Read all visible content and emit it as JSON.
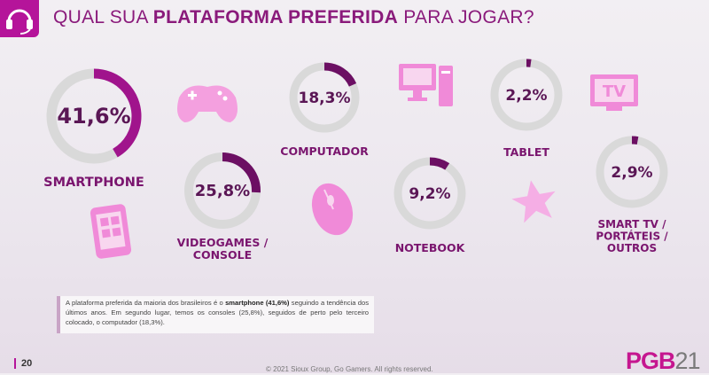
{
  "header": {
    "title_pre": "QUAL SUA ",
    "title_bold": "PLATAFORMA PREFERIDA",
    "title_post": " PARA JOGAR?",
    "icon": "headset-icon"
  },
  "colors": {
    "accent": "#a0148c",
    "dark_accent": "#6c0f63",
    "track": "#d9d9d9",
    "icon_pink": "#f08ad8"
  },
  "chart_data": {
    "type": "donut",
    "title": "QUAL SUA PLATAFORMA PREFERIDA PARA JOGAR?",
    "categories": [
      "SMARTPHONE",
      "VIDEOGAMES / CONSOLE",
      "COMPUTADOR",
      "NOTEBOOK",
      "TABLET",
      "SMART TV / PORTÁTEIS / OUTROS"
    ],
    "values": [
      41.6,
      25.8,
      18.3,
      9.2,
      2.2,
      2.9
    ],
    "labels": [
      "41,6%",
      "25,8%",
      "18,3%",
      "9,2%",
      "2,2%",
      "2,9%"
    ],
    "name_lines": [
      [
        "SMARTPHONE"
      ],
      [
        "VIDEOGAMES /",
        "CONSOLE"
      ],
      [
        "COMPUTADOR"
      ],
      [
        "NOTEBOOK"
      ],
      [
        "TABLET"
      ],
      [
        "SMART TV /",
        "PORTÁTEIS /",
        "OUTROS"
      ]
    ],
    "icons": [
      "gamepad-icon",
      "monitor-icon",
      "tv-icon",
      "phone-icon",
      "mouse-icon",
      "star-icon"
    ]
  },
  "note": {
    "part1": "A plataforma preferida da maioria dos brasileiros é o ",
    "bold": "smartphone (41,6%)",
    "part2": " seguindo a tendência dos últimos anos. Em segundo lugar, temos os consoles (25,8%), seguidos de perto pelo terceiro colocado, o computador (18,3%)."
  },
  "footer": {
    "page": "20",
    "copyright": "© 2021 Sioux Group, Go Gamers. All rights reserved.",
    "logo_main": "PGB",
    "logo_year": "21"
  }
}
